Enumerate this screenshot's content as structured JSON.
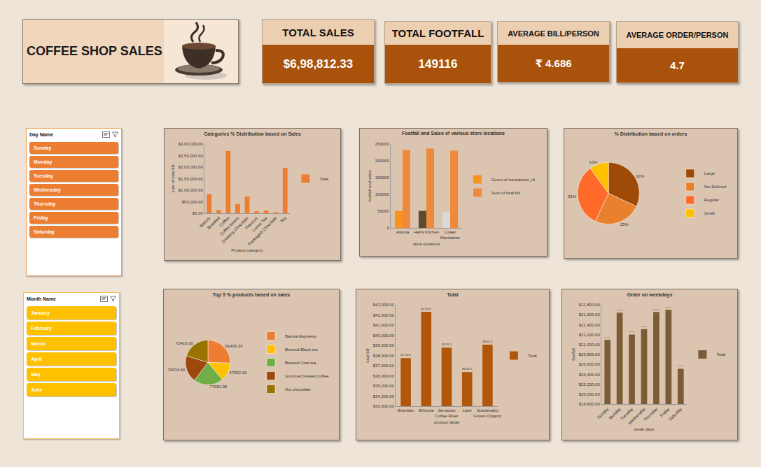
{
  "title": "COFFEE SHOP SALES",
  "kpis": [
    {
      "label": "TOTAL SALES",
      "value": "$6,98,812.33"
    },
    {
      "label": "TOTAL FOOTFALL",
      "value": "149116"
    },
    {
      "label": "AVERAGE BILL/PERSON",
      "value": "₹ 4.686"
    },
    {
      "label": "AVERAGE ORDER/PERSON",
      "value": "4.7"
    }
  ],
  "slicers": [
    {
      "title": "Day Name",
      "items": [
        "Sunday",
        "Monday",
        "Tuesday",
        "Wednesday",
        "Thursday",
        "Friday",
        "Saturday"
      ]
    },
    {
      "title": "Month Name",
      "items": [
        "January",
        "February",
        "March",
        "April",
        "May",
        "June"
      ]
    }
  ],
  "chart_data": [
    {
      "type": "bar",
      "title": "Categories % Distribution based on Sales",
      "x_label": "Product category",
      "y_label": "sum of total bill",
      "categories": [
        "Bakery",
        "Branded",
        "Coffee",
        "Coffee beans",
        "Drinking Chocolate",
        "Flavours",
        "Loose Tea",
        "Packaged Chocolate",
        "Tea"
      ],
      "series": [
        {
          "name": "Total",
          "color": "#ed7d31",
          "values": [
            82315,
            13607,
            269952,
            40085,
            72416,
            8408,
            11213,
            4408,
            196406
          ]
        }
      ],
      "ylim": [
        0,
        300000
      ],
      "yticks": [
        {
          "value": 0,
          "label": "$0.00"
        },
        {
          "value": 50000,
          "label": "$50,000.00"
        },
        {
          "value": 100000,
          "label": "$1,00,000.00"
        },
        {
          "value": 150000,
          "label": "$1,50,000.00"
        },
        {
          "value": 200000,
          "label": "$2,00,000.00"
        },
        {
          "value": 250000,
          "label": "$2,50,000.00"
        },
        {
          "value": 300000,
          "label": "$3,00,000.00"
        }
      ],
      "legend": "right",
      "grid": false
    },
    {
      "type": "bar",
      "title": "Footfall and Sales of various store locations",
      "x_label": "store locations",
      "y_label": "footfall and sales",
      "categories": [
        "Astoria",
        "Hell's Kitchen",
        "Lower Manhattan"
      ],
      "series": [
        {
          "name": "Count of transaction_id",
          "colors": [
            "#f7941d",
            "#5c4a33",
            "#d9d9d9"
          ],
          "values": [
            50599,
            50735,
            47782
          ]
        },
        {
          "name": "Sum of total bill",
          "color": "#ef8a3c",
          "values": [
            232243.91,
            236511.17,
            230057.25
          ]
        }
      ],
      "ylim": [
        0,
        250000
      ],
      "yticks": [
        0,
        50000,
        100000,
        150000,
        200000,
        250000
      ],
      "legend": "right",
      "grid": false
    },
    {
      "type": "pie",
      "title": "% Distribution based on orders",
      "categories": [
        "Large",
        "Not Defined",
        "Regular",
        "Small"
      ],
      "values": [
        32,
        25,
        33,
        10
      ],
      "value_labels": [
        "32%",
        "25%",
        "33%",
        "10%"
      ],
      "colors": [
        "#9e4a06",
        "#e9802e",
        "#ff6a2a",
        "#ffc000"
      ],
      "data_labels": true,
      "legend": "right"
    },
    {
      "type": "pie",
      "title": "Top 5 % products based on sales",
      "categories": [
        "Barista Espresso",
        "Brewed Black tea",
        "Brewed Chai tea",
        "Gourmet brewed coffee",
        "Hot chocolate"
      ],
      "values": [
        91406.2,
        47932,
        77081.95,
        70034.6,
        72416
      ],
      "value_labels": [
        "91406.20",
        "47932.00",
        "77081.95",
        "70034.60",
        "72416.00"
      ],
      "colors": [
        "#ed7d31",
        "#ffc000",
        "#70ad47",
        "#9e480e",
        "#997300"
      ],
      "data_labels": true,
      "legend": "right"
    },
    {
      "type": "bar",
      "title": "Total",
      "x_label": "product detail",
      "y_label": "total bill",
      "categories": [
        "Brazilian",
        "Ethiopia",
        "Jamaican Coffee River",
        "Latte",
        "Sustainably Grown Organic"
      ],
      "series": [
        {
          "name": "Total",
          "color": "#b0570b",
          "values": [
            37746.5,
            42304.1,
            38781.15,
            36369.75,
            39065.1
          ],
          "value_labels": [
            "$37,746.50",
            "$42,304.10",
            "$38,781.15",
            "$36,369.75",
            "$39,065.10"
          ]
        }
      ],
      "ylim": [
        33000,
        43000
      ],
      "yticks": [
        {
          "value": 33000,
          "label": "$33,000.00"
        },
        {
          "value": 34000,
          "label": "$34,000.00"
        },
        {
          "value": 35000,
          "label": "$35,000.00"
        },
        {
          "value": 36000,
          "label": "$36,000.00"
        },
        {
          "value": 37000,
          "label": "$37,000.00"
        },
        {
          "value": 38000,
          "label": "$38,000.00"
        },
        {
          "value": 39000,
          "label": "$39,000.00"
        },
        {
          "value": 40000,
          "label": "$40,000.00"
        },
        {
          "value": 41000,
          "label": "$41,000.00"
        },
        {
          "value": 42000,
          "label": "$42,000.00"
        },
        {
          "value": 43000,
          "label": "$43,000.00"
        }
      ],
      "data_labels": true,
      "legend": "right",
      "grid": false
    },
    {
      "type": "bar",
      "title": "Order on weekdays",
      "x_label": "week days",
      "y_label": "footfall",
      "categories": [
        "Sunday",
        "Monday",
        "Tuesday",
        "Wednesday",
        "Thursday",
        "Friday",
        "Saturday"
      ],
      "series": [
        {
          "name": "Total",
          "color": "#7a5c36",
          "values": [
            21096,
            21643,
            21202,
            21310,
            21654,
            21701,
            20510
          ],
          "value_labels": [
            "$21,096.00",
            "$21,643.00",
            "$21,202.00",
            "$21,310.00",
            "$21,654.00",
            "$21,701.00",
            "$20,510.00"
          ]
        }
      ],
      "ylim": [
        19800,
        21800
      ],
      "yticks": [
        {
          "value": 19800,
          "label": "$19,800.00"
        },
        {
          "value": 20000,
          "label": "$20,000.00"
        },
        {
          "value": 20200,
          "label": "$20,200.00"
        },
        {
          "value": 20400,
          "label": "$20,400.00"
        },
        {
          "value": 20600,
          "label": "$20,600.00"
        },
        {
          "value": 20800,
          "label": "$20,800.00"
        },
        {
          "value": 21000,
          "label": "$21,000.00"
        },
        {
          "value": 21200,
          "label": "$21,200.00"
        },
        {
          "value": 21400,
          "label": "$21,400.00"
        },
        {
          "value": 21600,
          "label": "$21,600.00"
        },
        {
          "value": 21800,
          "label": "$21,800.00"
        }
      ],
      "data_labels": true,
      "legend": "right",
      "grid": false
    }
  ]
}
